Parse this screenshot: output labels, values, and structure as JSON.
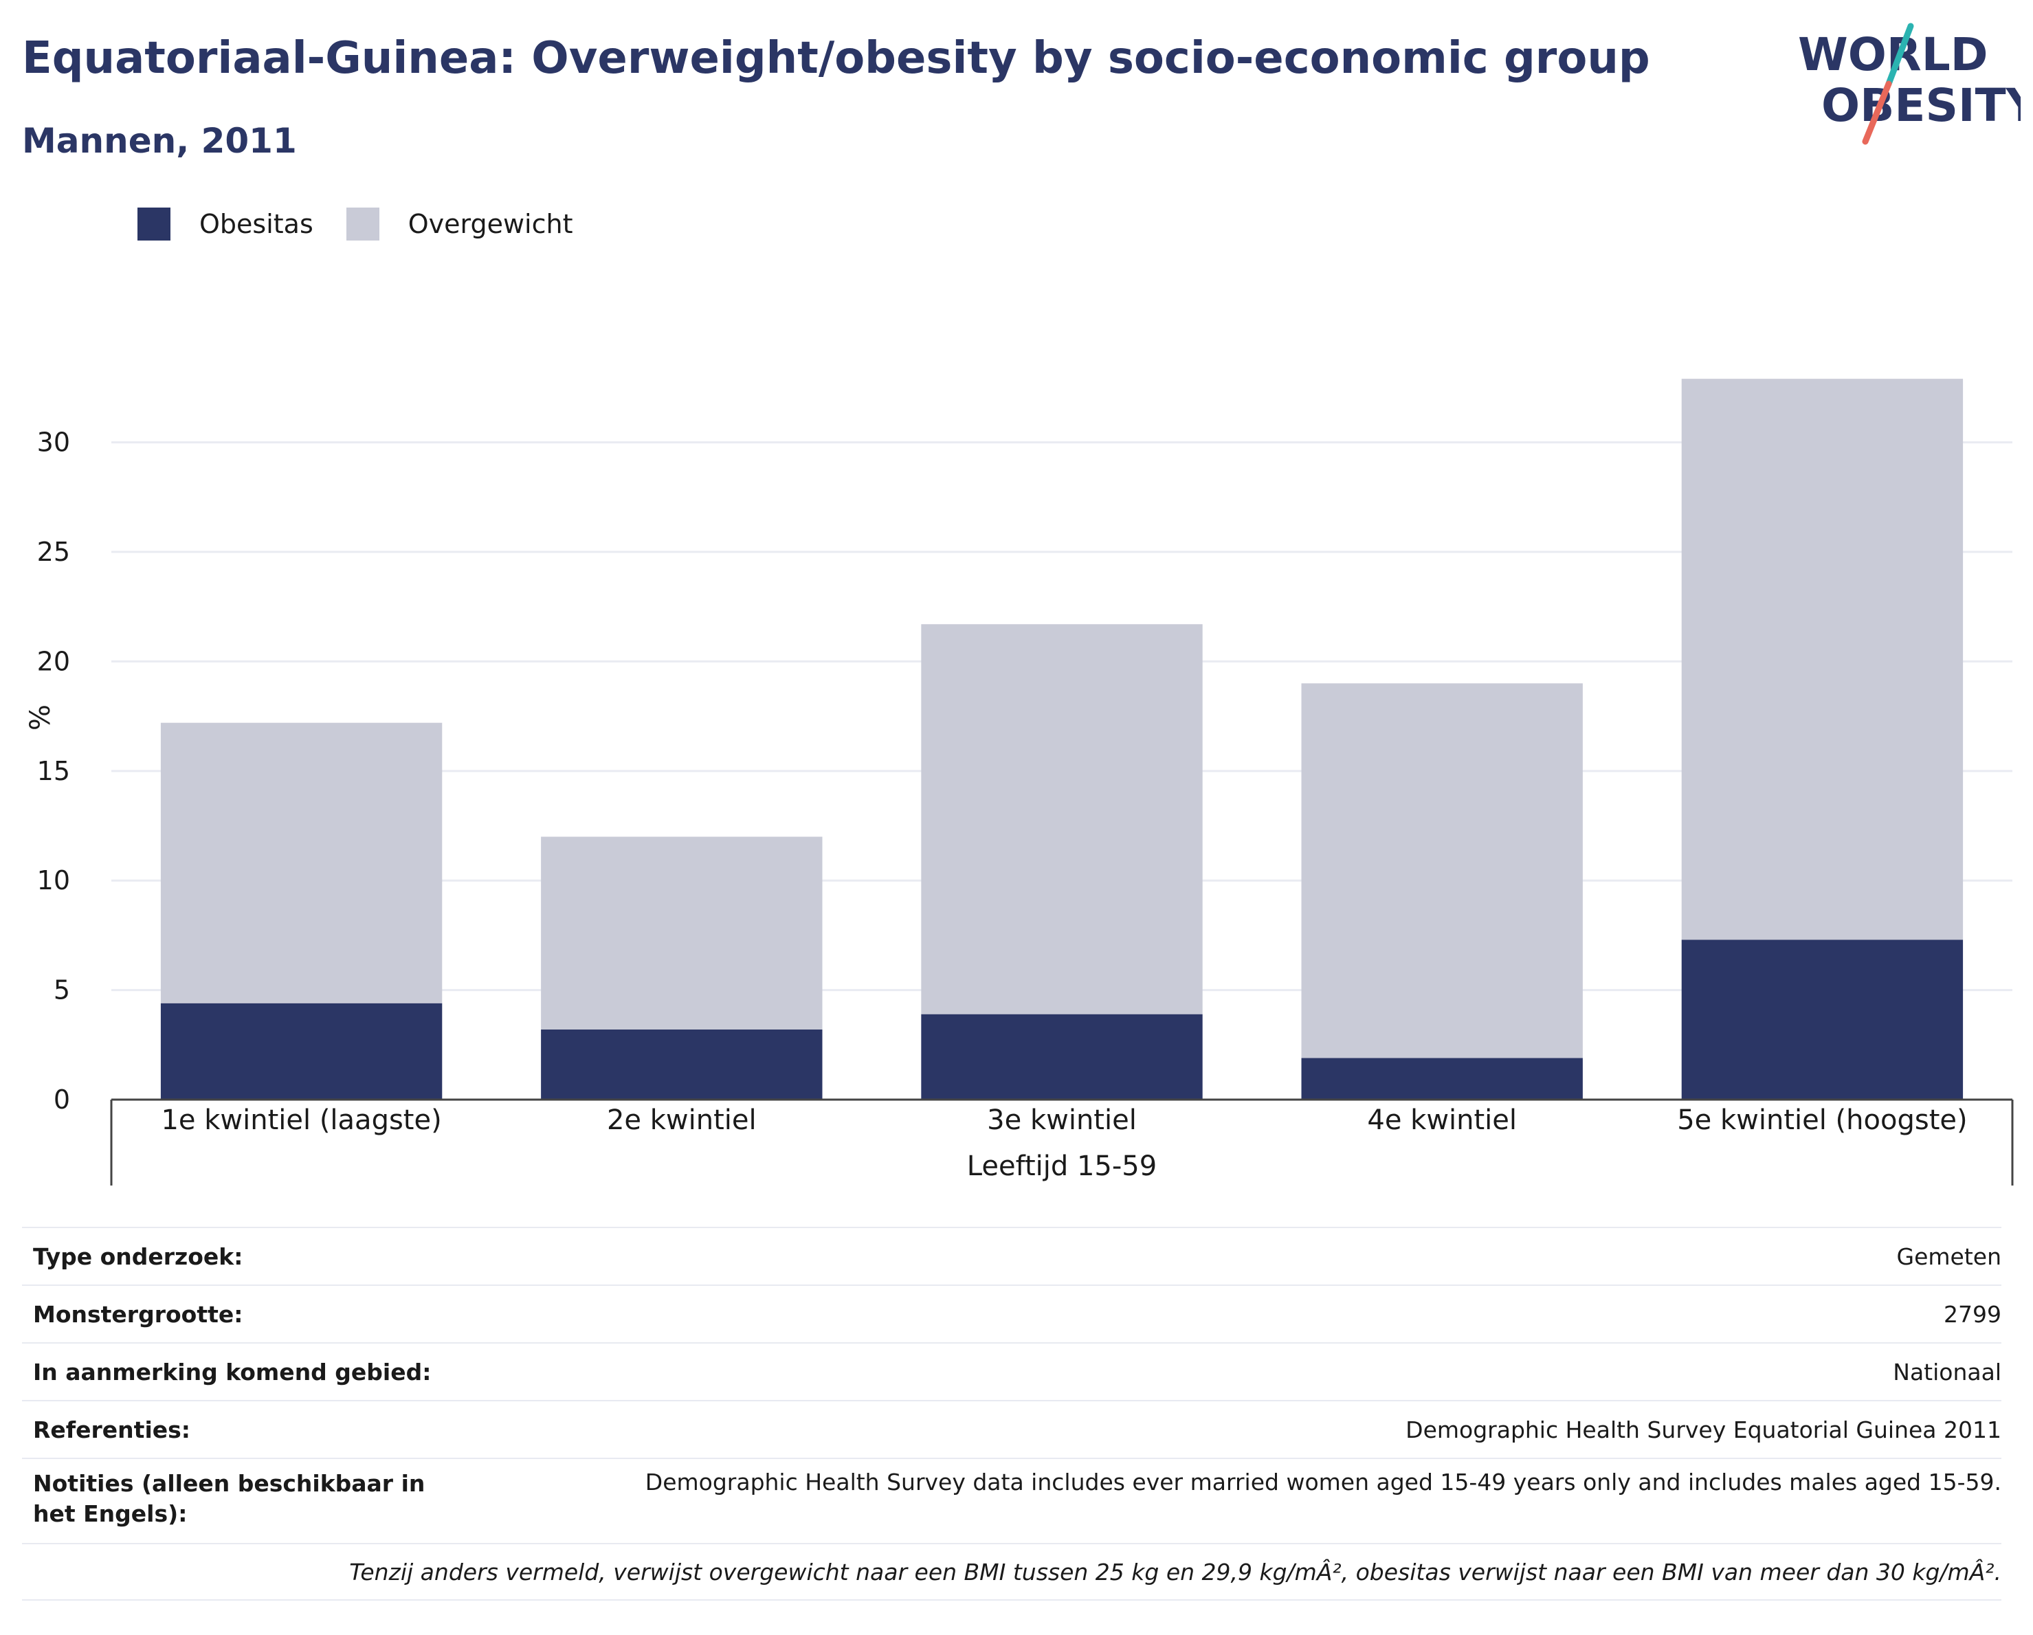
{
  "header": {
    "title": "Equatoriaal-Guinea: Overweight/obesity by socio-economic group",
    "subtitle": "Mannen, 2011"
  },
  "logo": {
    "line1": "WORLD",
    "line2": "OBESITY",
    "colors": {
      "text": "#2b3665",
      "slash_top": "#2bb3b1",
      "slash_bottom": "#e8685a"
    }
  },
  "legend": {
    "items": [
      {
        "label": "Obesitas",
        "color": "#2b3665"
      },
      {
        "label": "Overgewicht",
        "color": "#c9cbd7"
      }
    ]
  },
  "chart_data": {
    "type": "bar",
    "stacked": true,
    "categories": [
      "1e kwintiel (laagste)",
      "2e kwintiel",
      "3e kwintiel",
      "4e kwintiel",
      "5e kwintiel (hoogste)"
    ],
    "series": [
      {
        "name": "Obesitas",
        "values": [
          4.4,
          3.2,
          3.9,
          1.9,
          7.3
        ],
        "color": "#2b3665"
      },
      {
        "name": "Overgewicht",
        "values": [
          12.8,
          8.8,
          17.8,
          17.1,
          25.6
        ],
        "color": "#c9cbd7"
      }
    ],
    "ylabel": "%",
    "xlabel": "Leeftijd 15-59",
    "ylim": [
      0,
      33
    ],
    "yticks": [
      0,
      5,
      10,
      15,
      20,
      25,
      30
    ],
    "grid": true,
    "legend_position": "top-left"
  },
  "meta": {
    "rows": [
      {
        "key": "Type onderzoek:",
        "value": "Gemeten"
      },
      {
        "key": "Monstergrootte:",
        "value": "2799"
      },
      {
        "key": "In aanmerking komend gebied:",
        "value": "Nationaal"
      },
      {
        "key": "Referenties:",
        "value": "Demographic Health Survey Equatorial Guinea 2011"
      },
      {
        "key": "Notities (alleen beschikbaar in het Engels):",
        "value": "Demographic Health Survey data includes ever married women aged 15-49 years only and includes males aged 15-59."
      }
    ],
    "footnote": "Tenzij anders vermeld, verwijst overgewicht naar een BMI tussen 25 kg en 29,9 kg/mÂ², obesitas verwijst naar een BMI van meer dan 30 kg/mÂ²."
  }
}
